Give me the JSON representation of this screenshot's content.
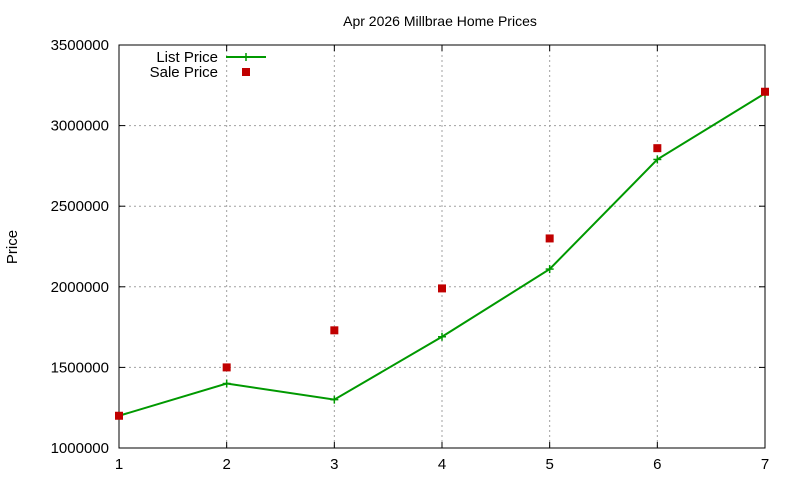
{
  "chart_data": {
    "type": "line",
    "title": "Apr 2026 Millbrae Home Prices",
    "xlabel": "",
    "ylabel": "Price",
    "x": [
      1,
      2,
      3,
      4,
      5,
      6,
      7
    ],
    "xlim": [
      1,
      7
    ],
    "ylim": [
      1000000,
      3500000
    ],
    "xticks": [
      1,
      2,
      3,
      4,
      5,
      6,
      7
    ],
    "yticks": [
      1000000,
      1500000,
      2000000,
      2500000,
      3000000,
      3500000
    ],
    "grid": true,
    "legend_position": "top-left",
    "series": [
      {
        "name": "List Price",
        "style": "line-with-plus-markers",
        "color": "#009900",
        "values": [
          1200000,
          1400000,
          1300000,
          1690000,
          2110000,
          2790000,
          3200000
        ]
      },
      {
        "name": "Sale Price",
        "style": "square-points",
        "color": "#c00000",
        "values": [
          1200000,
          1500000,
          1730000,
          1990000,
          2300000,
          2860000,
          3210000
        ]
      }
    ]
  }
}
